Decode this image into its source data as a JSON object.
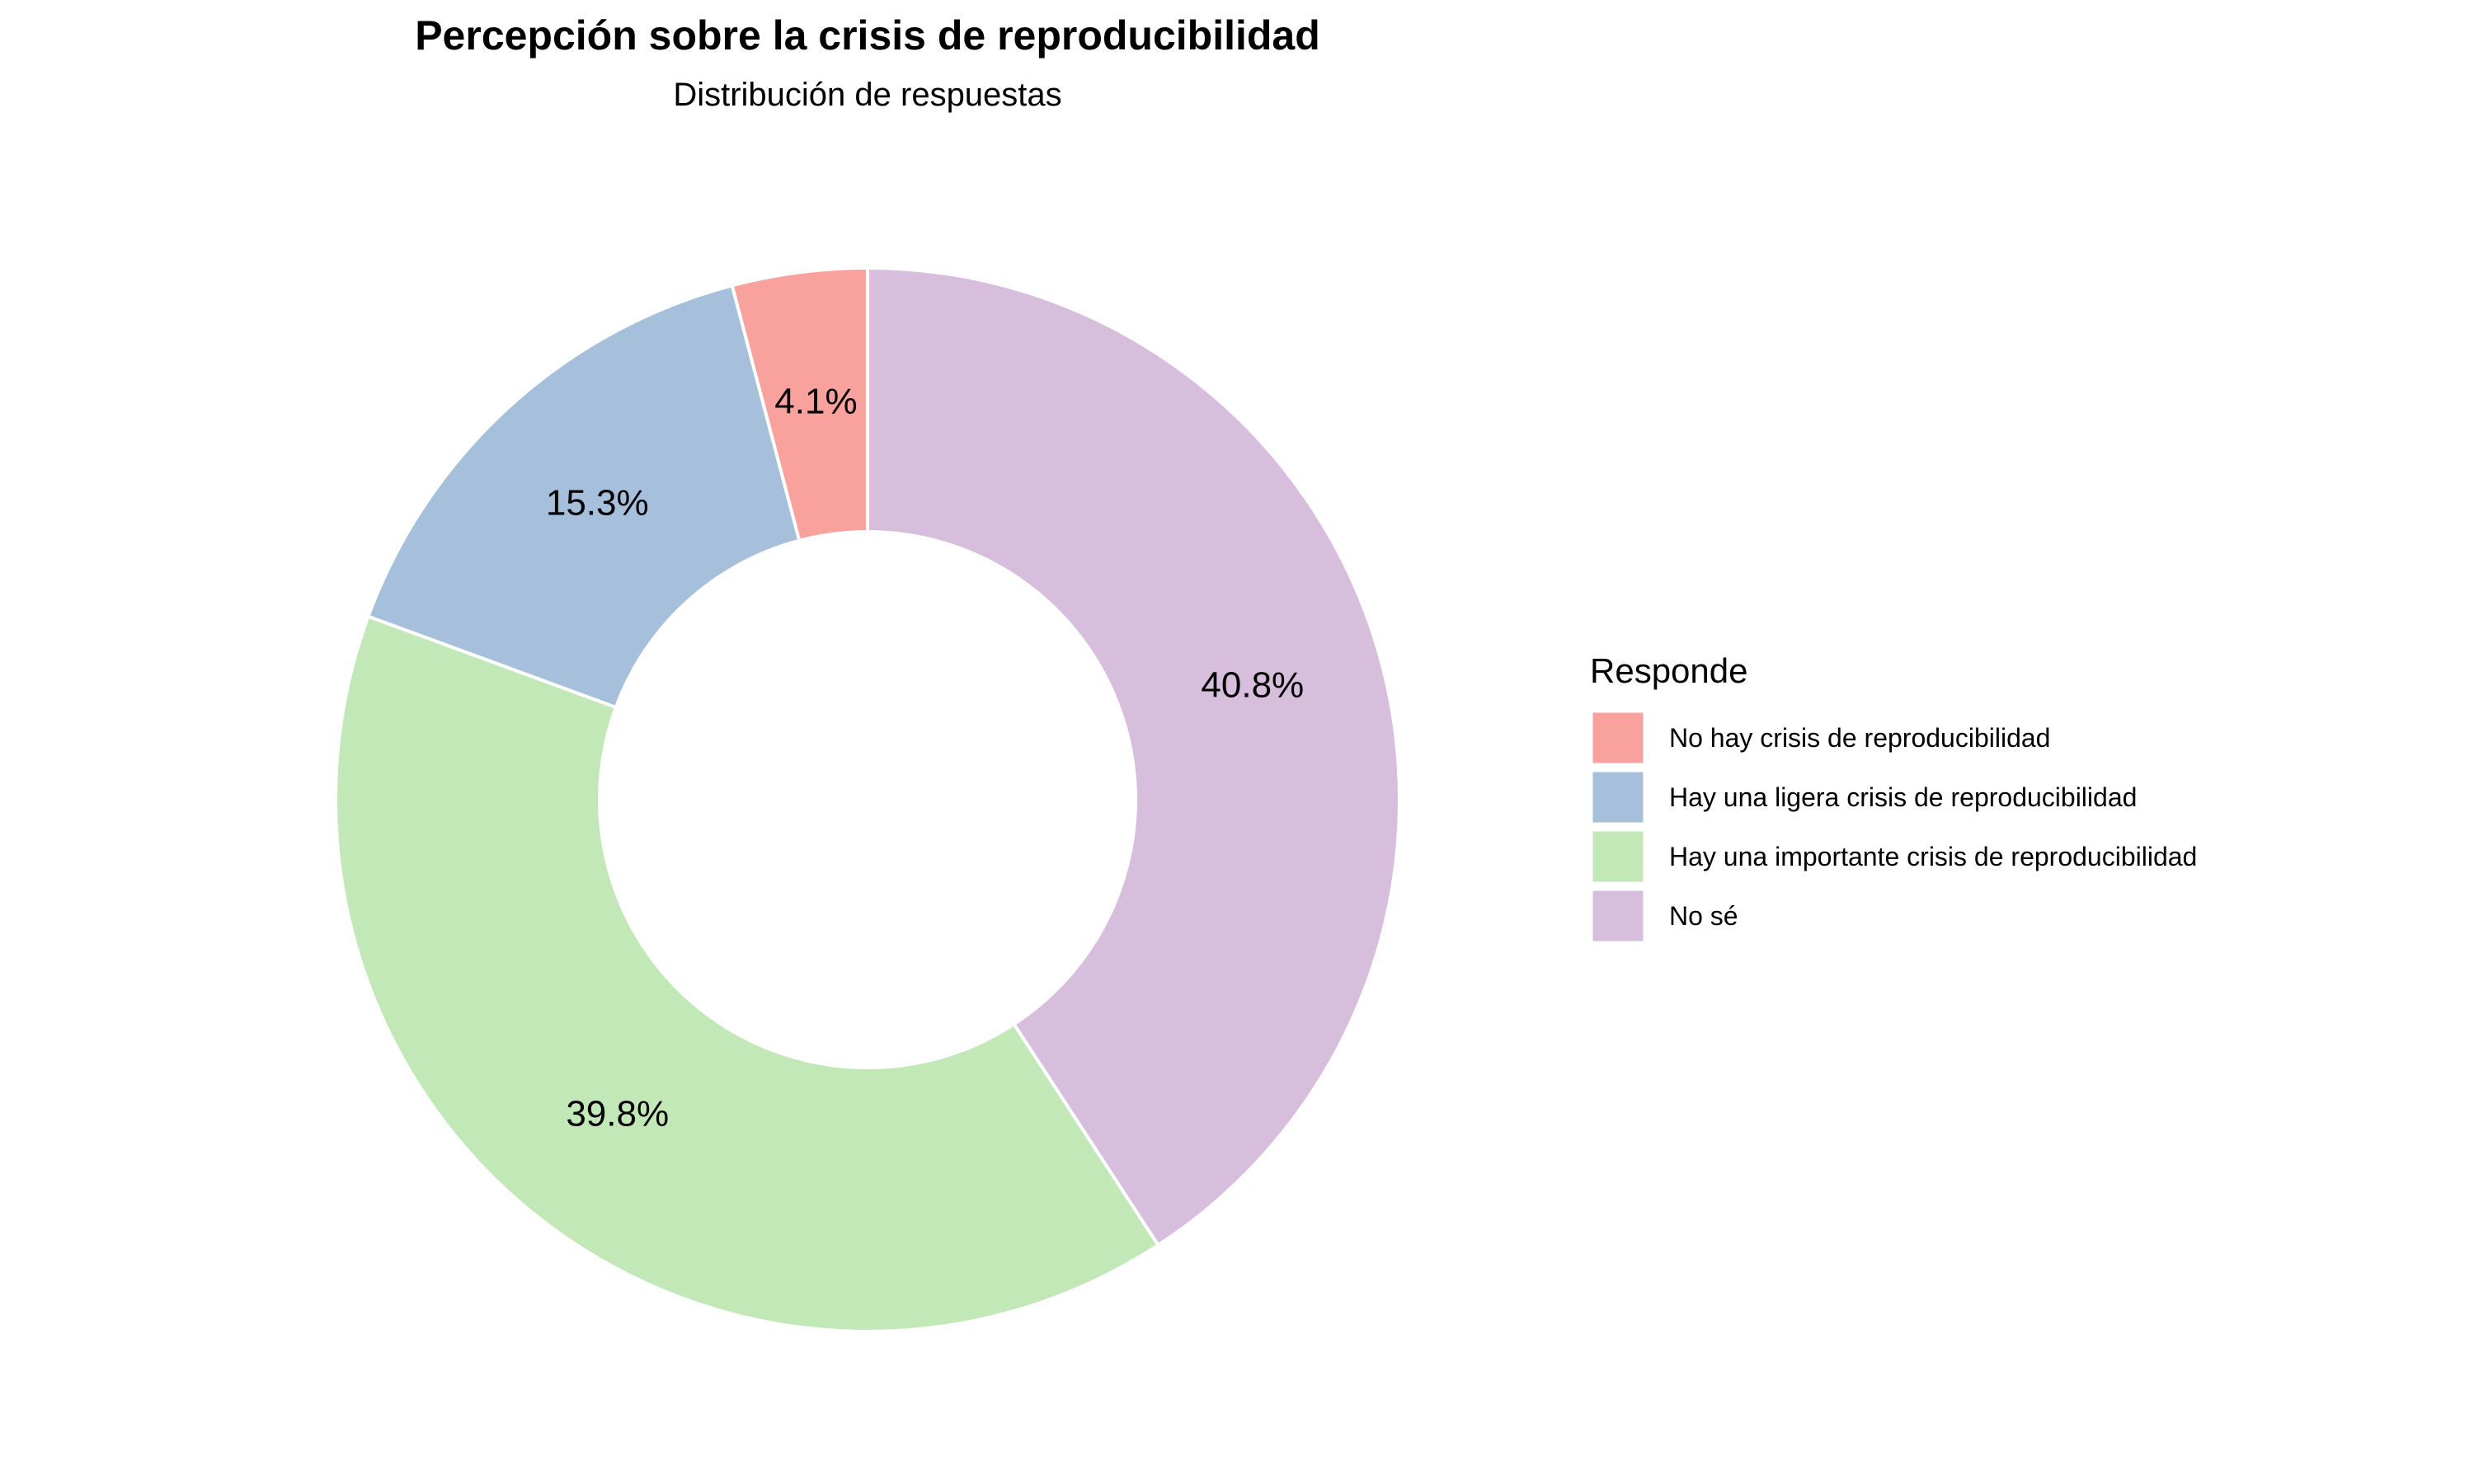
{
  "chart_data": {
    "type": "pie",
    "title": "Percepción sobre la crisis de reproducibilidad",
    "subtitle": "Distribución de respuestas",
    "legend_title": "Responde",
    "legend_position": "right",
    "donut": true,
    "categories": [
      "No hay crisis de reproducibilidad",
      "Hay una ligera crisis de reproducibilidad",
      "Hay una importante crisis de reproducibilidad",
      "No sé"
    ],
    "values": [
      4.1,
      15.3,
      39.8,
      40.8
    ],
    "labels": [
      "4.1%",
      "15.3%",
      "39.8%",
      "40.8%"
    ],
    "colors": [
      "#f8a19d",
      "#a6bfdb",
      "#c2e8b8",
      "#d7bedd"
    ],
    "slice_border_color": "#ffffff"
  }
}
